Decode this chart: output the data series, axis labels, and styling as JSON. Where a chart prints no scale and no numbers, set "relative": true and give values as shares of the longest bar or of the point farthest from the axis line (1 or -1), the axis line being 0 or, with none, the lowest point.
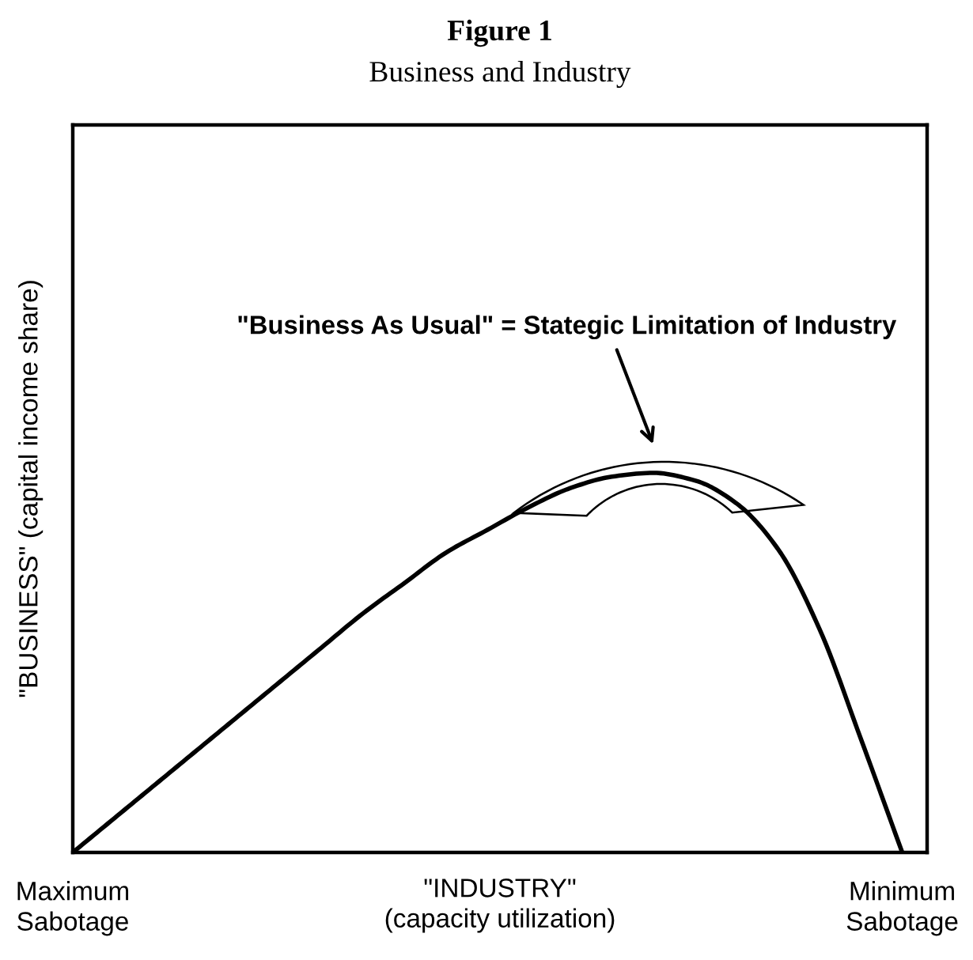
{
  "chart_data": {
    "type": "line",
    "title": "Figure 1",
    "subtitle": "Business and Industry",
    "xlabel": "\"INDUSTRY\"\n(capacity utilization)",
    "ylabel": "\"BUSINESS\" (capital income share)",
    "annotations": [
      "\"Business As Usual\" = Stategic Limitation of Industry"
    ],
    "categories": [
      "Maximum\nSabotage",
      null,
      null,
      null,
      null,
      null,
      null,
      null,
      null,
      null,
      null,
      null,
      null,
      null,
      null,
      null,
      null,
      null,
      null,
      null,
      "Minimum\nSabotage"
    ],
    "series": [
      {
        "color": "#000000",
        "values": [
          0,
          0.09,
          0.18,
          0.27,
          0.36,
          0.45,
          0.54,
          0.63,
          0.71,
          0.79,
          0.85,
          0.91,
          0.96,
          0.99,
          1.0,
          0.98,
          0.92,
          0.8,
          0.59,
          0.3,
          0
        ]
      }
    ],
    "relative": true,
    "marker": "none",
    "line_style": "solid"
  }
}
